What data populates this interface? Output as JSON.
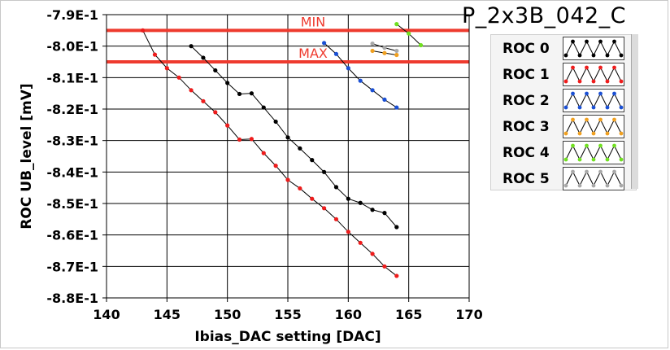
{
  "chart_data": {
    "type": "line",
    "title": "P_2x3B_042_C",
    "xlabel": "Ibias_DAC setting [DAC]",
    "ylabel": "ROC UB_level [mV]",
    "xlim": [
      140,
      170
    ],
    "ylim": [
      -0.88,
      -0.79
    ],
    "x_ticks": [
      140,
      145,
      150,
      155,
      160,
      165,
      170
    ],
    "x_tick_labels": [
      "140",
      "145",
      "150",
      "155",
      "160",
      "165",
      "170"
    ],
    "y_ticks": [
      -0.79,
      -0.8,
      -0.81,
      -0.82,
      -0.83,
      -0.84,
      -0.85,
      -0.86,
      -0.87,
      -0.88
    ],
    "y_tick_labels": [
      "-7.9E-1",
      "-8.0E-1",
      "-8.1E-1",
      "-8.2E-1",
      "-8.3E-1",
      "-8.4E-1",
      "-8.5E-1",
      "-8.6E-1",
      "-8.7E-1",
      "-8.8E-1"
    ],
    "grid": true,
    "legend_position": "right",
    "limits": [
      {
        "label": "MIN",
        "y": -0.795,
        "color": "#ee3a2e"
      },
      {
        "label": "MAX",
        "y": -0.805,
        "color": "#ee3a2e"
      }
    ],
    "series": [
      {
        "name": "ROC 0",
        "color": "#000000",
        "x": [
          147,
          148,
          149,
          150,
          151,
          152,
          153,
          154,
          155,
          156,
          157,
          158,
          159,
          160,
          161,
          162,
          163,
          164
        ],
        "y": [
          -0.8,
          -0.8037,
          -0.8077,
          -0.8117,
          -0.8152,
          -0.815,
          -0.8195,
          -0.824,
          -0.829,
          -0.8325,
          -0.8362,
          -0.84,
          -0.8448,
          -0.8485,
          -0.8498,
          -0.852,
          -0.853,
          -0.8575
        ]
      },
      {
        "name": "ROC 1",
        "color": "#ee1c1c",
        "x": [
          143,
          144,
          145,
          146,
          147,
          148,
          149,
          150,
          151,
          152,
          153,
          154,
          155,
          156,
          157,
          158,
          159,
          160,
          161,
          162,
          163,
          164
        ],
        "y": [
          -0.795,
          -0.8027,
          -0.807,
          -0.81,
          -0.814,
          -0.8175,
          -0.821,
          -0.8252,
          -0.8297,
          -0.8295,
          -0.834,
          -0.838,
          -0.8425,
          -0.8452,
          -0.8485,
          -0.8515,
          -0.855,
          -0.859,
          -0.8625,
          -0.866,
          -0.87,
          -0.873
        ]
      },
      {
        "name": "ROC 2",
        "color": "#1a4fd4",
        "x": [
          158,
          159,
          160,
          161,
          162,
          163,
          164
        ],
        "y": [
          -0.799,
          -0.8025,
          -0.807,
          -0.811,
          -0.814,
          -0.817,
          -0.8195
        ]
      },
      {
        "name": "ROC 3",
        "color": "#f0a020",
        "x": [
          162,
          163,
          164
        ],
        "y": [
          -0.8015,
          -0.8022,
          -0.8028
        ]
      },
      {
        "name": "ROC 4",
        "color": "#70e020",
        "x": [
          164,
          165,
          166
        ],
        "y": [
          -0.793,
          -0.796,
          -0.7997
        ]
      },
      {
        "name": "ROC 5",
        "color": "#a8a8a8",
        "x": [
          162,
          163,
          164
        ],
        "y": [
          -0.7992,
          -0.8005,
          -0.8015
        ]
      }
    ]
  }
}
